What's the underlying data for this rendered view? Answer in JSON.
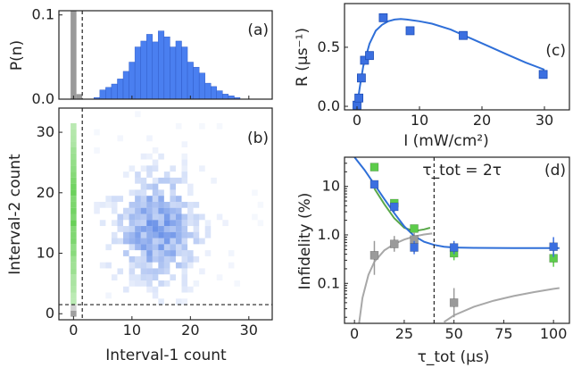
{
  "colors": {
    "blue": "#3b6fe0",
    "blue_fill": "#4a7ff0",
    "green": "#5ccc4a",
    "gray": "#9a9a9a",
    "blue_fit": "#2f6fd8",
    "green_fit": "#5aa84a",
    "gray_fit": "#a8a8a8"
  },
  "chart_data": [
    {
      "id": "a",
      "panel_label": "(a)",
      "type": "bar",
      "ylabel": "P(n)",
      "xlim": [
        -2.5,
        34
      ],
      "ylim": [
        0,
        0.105
      ],
      "yticks": [
        0.0,
        0.1
      ],
      "ytick_labels": [
        "0.0",
        "0.1"
      ],
      "threshold_x": 1.5,
      "gray_bars": [
        {
          "n": 0,
          "p": 0.105
        },
        {
          "n": 1,
          "p": 0.006
        }
      ],
      "blue_bars": [
        {
          "n": 4,
          "p": 0.002
        },
        {
          "n": 5,
          "p": 0.011
        },
        {
          "n": 6,
          "p": 0.014
        },
        {
          "n": 7,
          "p": 0.018
        },
        {
          "n": 8,
          "p": 0.024
        },
        {
          "n": 9,
          "p": 0.033
        },
        {
          "n": 10,
          "p": 0.044
        },
        {
          "n": 11,
          "p": 0.062
        },
        {
          "n": 12,
          "p": 0.069
        },
        {
          "n": 13,
          "p": 0.077
        },
        {
          "n": 14,
          "p": 0.068
        },
        {
          "n": 15,
          "p": 0.081
        },
        {
          "n": 16,
          "p": 0.074
        },
        {
          "n": 17,
          "p": 0.062
        },
        {
          "n": 18,
          "p": 0.069
        },
        {
          "n": 19,
          "p": 0.062
        },
        {
          "n": 20,
          "p": 0.044
        },
        {
          "n": 21,
          "p": 0.038
        },
        {
          "n": 22,
          "p": 0.031
        },
        {
          "n": 23,
          "p": 0.019
        },
        {
          "n": 24,
          "p": 0.015
        },
        {
          "n": 25,
          "p": 0.01
        },
        {
          "n": 26,
          "p": 0.006
        },
        {
          "n": 27,
          "p": 0.004
        },
        {
          "n": 28,
          "p": 0.002
        }
      ]
    },
    {
      "id": "b",
      "panel_label": "(b)",
      "type": "heatmap",
      "xlabel": "Interval-1 count",
      "ylabel": "Interval-2 count",
      "xlim": [
        -2.5,
        34
      ],
      "ylim": [
        -1,
        34
      ],
      "xticks": [
        0,
        10,
        20,
        30
      ],
      "yticks": [
        0,
        10,
        20,
        30
      ],
      "threshold_x": 1.5,
      "threshold_y": 1.5,
      "distribution_center": [
        14,
        14
      ],
      "distribution_spread": [
        5,
        6
      ],
      "green_column_x": 0,
      "green_column_range": [
        2,
        31
      ],
      "gray_cells": [
        [
          0,
          0
        ],
        [
          0,
          1
        ]
      ]
    },
    {
      "id": "c",
      "panel_label": "(c)",
      "type": "scatter",
      "xlabel": "I (mW/cm²)",
      "ylabel": "R (μs⁻¹)",
      "xlim": [
        -2,
        34
      ],
      "ylim": [
        -0.03,
        0.87
      ],
      "xticks": [
        0,
        10,
        20,
        30
      ],
      "yticks": [
        0.0,
        0.5
      ],
      "ytick_labels": [
        "0.0",
        "0.5"
      ],
      "points": [
        {
          "x": 0.0,
          "y": 0.01
        },
        {
          "x": 0.3,
          "y": 0.07
        },
        {
          "x": 0.7,
          "y": 0.24
        },
        {
          "x": 1.2,
          "y": 0.39
        },
        {
          "x": 2.0,
          "y": 0.43
        },
        {
          "x": 4.2,
          "y": 0.75
        },
        {
          "x": 8.5,
          "y": 0.64
        },
        {
          "x": 17.0,
          "y": 0.6
        },
        {
          "x": 29.8,
          "y": 0.27
        }
      ],
      "fit": [
        [
          0,
          0.0
        ],
        [
          0.5,
          0.18
        ],
        [
          1,
          0.34
        ],
        [
          2,
          0.53
        ],
        [
          3,
          0.64
        ],
        [
          4,
          0.69
        ],
        [
          5,
          0.72
        ],
        [
          6,
          0.735
        ],
        [
          7,
          0.74
        ],
        [
          8,
          0.735
        ],
        [
          10,
          0.72
        ],
        [
          12,
          0.7
        ],
        [
          15,
          0.65
        ],
        [
          18,
          0.58
        ],
        [
          21,
          0.51
        ],
        [
          24,
          0.44
        ],
        [
          27,
          0.37
        ],
        [
          30,
          0.31
        ]
      ]
    },
    {
      "id": "d",
      "panel_label": "(d)",
      "type": "line",
      "annotation": "τ_tot = 2τ",
      "xlabel": "τ_tot (μs)",
      "ylabel": "Infidelity (%)",
      "yscale": "log",
      "xlim": [
        -5,
        108
      ],
      "ylim": [
        0.015,
        40
      ],
      "xticks": [
        0,
        25,
        50,
        75,
        100
      ],
      "yticks": [
        0.1,
        1.0,
        10
      ],
      "ytick_labels": [
        "0.1",
        "1.0",
        "10"
      ],
      "vline_x": 40,
      "series": [
        {
          "color_key": "blue",
          "points": [
            {
              "x": 10,
              "y": 11,
              "err": [
                9,
                13
              ]
            },
            {
              "x": 20,
              "y": 3.8,
              "err": [
                3.0,
                4.6
              ]
            },
            {
              "x": 30,
              "y": 0.55,
              "err": [
                0.4,
                0.75
              ]
            },
            {
              "x": 50,
              "y": 0.55,
              "err": [
                0.4,
                0.75
              ]
            },
            {
              "x": 100,
              "y": 0.57,
              "err": [
                0.35,
                0.9
              ]
            }
          ],
          "fit": [
            [
              0,
              40
            ],
            [
              5,
              22
            ],
            [
              10,
              11
            ],
            [
              15,
              5.5
            ],
            [
              20,
              2.8
            ],
            [
              25,
              1.5
            ],
            [
              30,
              0.95
            ],
            [
              35,
              0.72
            ],
            [
              40,
              0.62
            ],
            [
              45,
              0.57
            ],
            [
              50,
              0.55
            ],
            [
              60,
              0.54
            ],
            [
              80,
              0.535
            ],
            [
              103,
              0.535
            ]
          ]
        },
        {
          "color_key": "green",
          "points": [
            {
              "x": 10,
              "y": 25,
              "err": [
                22,
                28
              ]
            },
            {
              "x": 20,
              "y": 4.5,
              "err": [
                3.8,
                5.2
              ]
            },
            {
              "x": 30,
              "y": 1.35,
              "err": [
                1.15,
                1.55
              ]
            },
            {
              "x": 50,
              "y": 0.42,
              "err": [
                0.3,
                0.55
              ]
            },
            {
              "x": 100,
              "y": 0.33,
              "err": [
                0.22,
                0.48
              ]
            }
          ],
          "fit": [
            [
              10,
              9
            ],
            [
              15,
              4.3
            ],
            [
              20,
              2.2
            ],
            [
              25,
              1.4
            ],
            [
              30,
              1.2
            ],
            [
              35,
              1.3
            ],
            [
              38,
              1.4
            ]
          ]
        },
        {
          "color_key": "gray",
          "points": [
            {
              "x": 10,
              "y": 0.38,
              "err": [
                0.15,
                0.75
              ]
            },
            {
              "x": 20,
              "y": 0.65,
              "err": [
                0.45,
                0.95
              ]
            },
            {
              "x": 30,
              "y": 0.8,
              "err": [
                0.55,
                1.1
              ]
            },
            {
              "x": 50,
              "y": 0.04,
              "err": [
                0.02,
                0.08
              ]
            }
          ],
          "fit_left": [
            [
              2,
              0.012
            ],
            [
              4,
              0.05
            ],
            [
              7,
              0.15
            ],
            [
              10,
              0.28
            ],
            [
              15,
              0.48
            ],
            [
              20,
              0.65
            ],
            [
              25,
              0.8
            ],
            [
              30,
              0.93
            ],
            [
              35,
              1.02
            ],
            [
              39,
              1.07
            ]
          ],
          "fit_right": [
            [
              45,
              0.016
            ],
            [
              50,
              0.022
            ],
            [
              60,
              0.033
            ],
            [
              70,
              0.044
            ],
            [
              80,
              0.055
            ],
            [
              90,
              0.066
            ],
            [
              100,
              0.077
            ],
            [
              103,
              0.08
            ]
          ]
        }
      ]
    }
  ]
}
